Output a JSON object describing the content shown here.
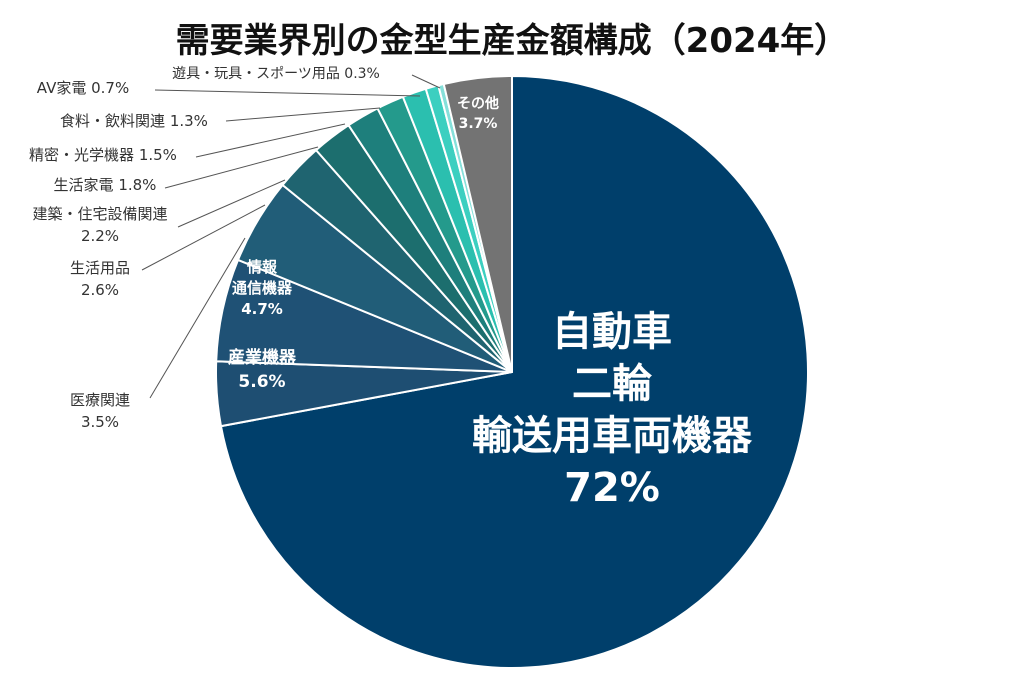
{
  "chart_data": {
    "type": "pie",
    "title": "需要業界別の金型生産金額構成（2024年）",
    "slices": [
      {
        "label": "自動車二輪輸送用車両機器",
        "label_lines": [
          "自動車",
          "二輪",
          "輸送用車両機器"
        ],
        "value": 72,
        "value_label": "72%",
        "color": "#003f6b"
      },
      {
        "label": "医療関連",
        "label_lines": [
          "医療関連"
        ],
        "value": 3.5,
        "value_label": "3.5%",
        "color": "#1e4e72"
      },
      {
        "label": "産業機器",
        "label_lines": [
          "産業機器"
        ],
        "value": 5.6,
        "value_label": "5.6%",
        "color": "#1f5175"
      },
      {
        "label": "情報通信機器",
        "label_lines": [
          "情報",
          "通信機器"
        ],
        "value": 4.7,
        "value_label": "4.7%",
        "color": "#215d78"
      },
      {
        "label": "生活用品",
        "label_lines": [
          "生活用品"
        ],
        "value": 2.6,
        "value_label": "2.6%",
        "color": "#1f6470"
      },
      {
        "label": "建築・住宅設備関連",
        "label_lines": [
          "建築・住宅設備関連"
        ],
        "value": 2.2,
        "value_label": "2.2%",
        "color": "#1c6e6e"
      },
      {
        "label": "生活家電",
        "label_lines": [
          "生活家電"
        ],
        "value": 1.8,
        "value_label": "1.8%",
        "color": "#1e7f7c"
      },
      {
        "label": "精密・光学機器",
        "label_lines": [
          "精密・光学機器"
        ],
        "value": 1.5,
        "value_label": "1.5%",
        "color": "#249a8c"
      },
      {
        "label": "食料・飲料関連",
        "label_lines": [
          "食料・飲料関連"
        ],
        "value": 1.3,
        "value_label": "1.3%",
        "color": "#2bbfaf"
      },
      {
        "label": "AV家電",
        "label_lines": [
          "AV家電"
        ],
        "value": 0.7,
        "value_label": "0.7%",
        "color": "#3ccfc0"
      },
      {
        "label": "遊具・玩具・スポーツ用品",
        "label_lines": [
          "遊具・玩具・スポーツ用品"
        ],
        "value": 0.3,
        "value_label": "0.3%",
        "color": "#85e0da"
      },
      {
        "label": "その他",
        "label_lines": [
          "その他"
        ],
        "value": 3.7,
        "value_label": "3.7%",
        "color": "#737373"
      }
    ]
  }
}
